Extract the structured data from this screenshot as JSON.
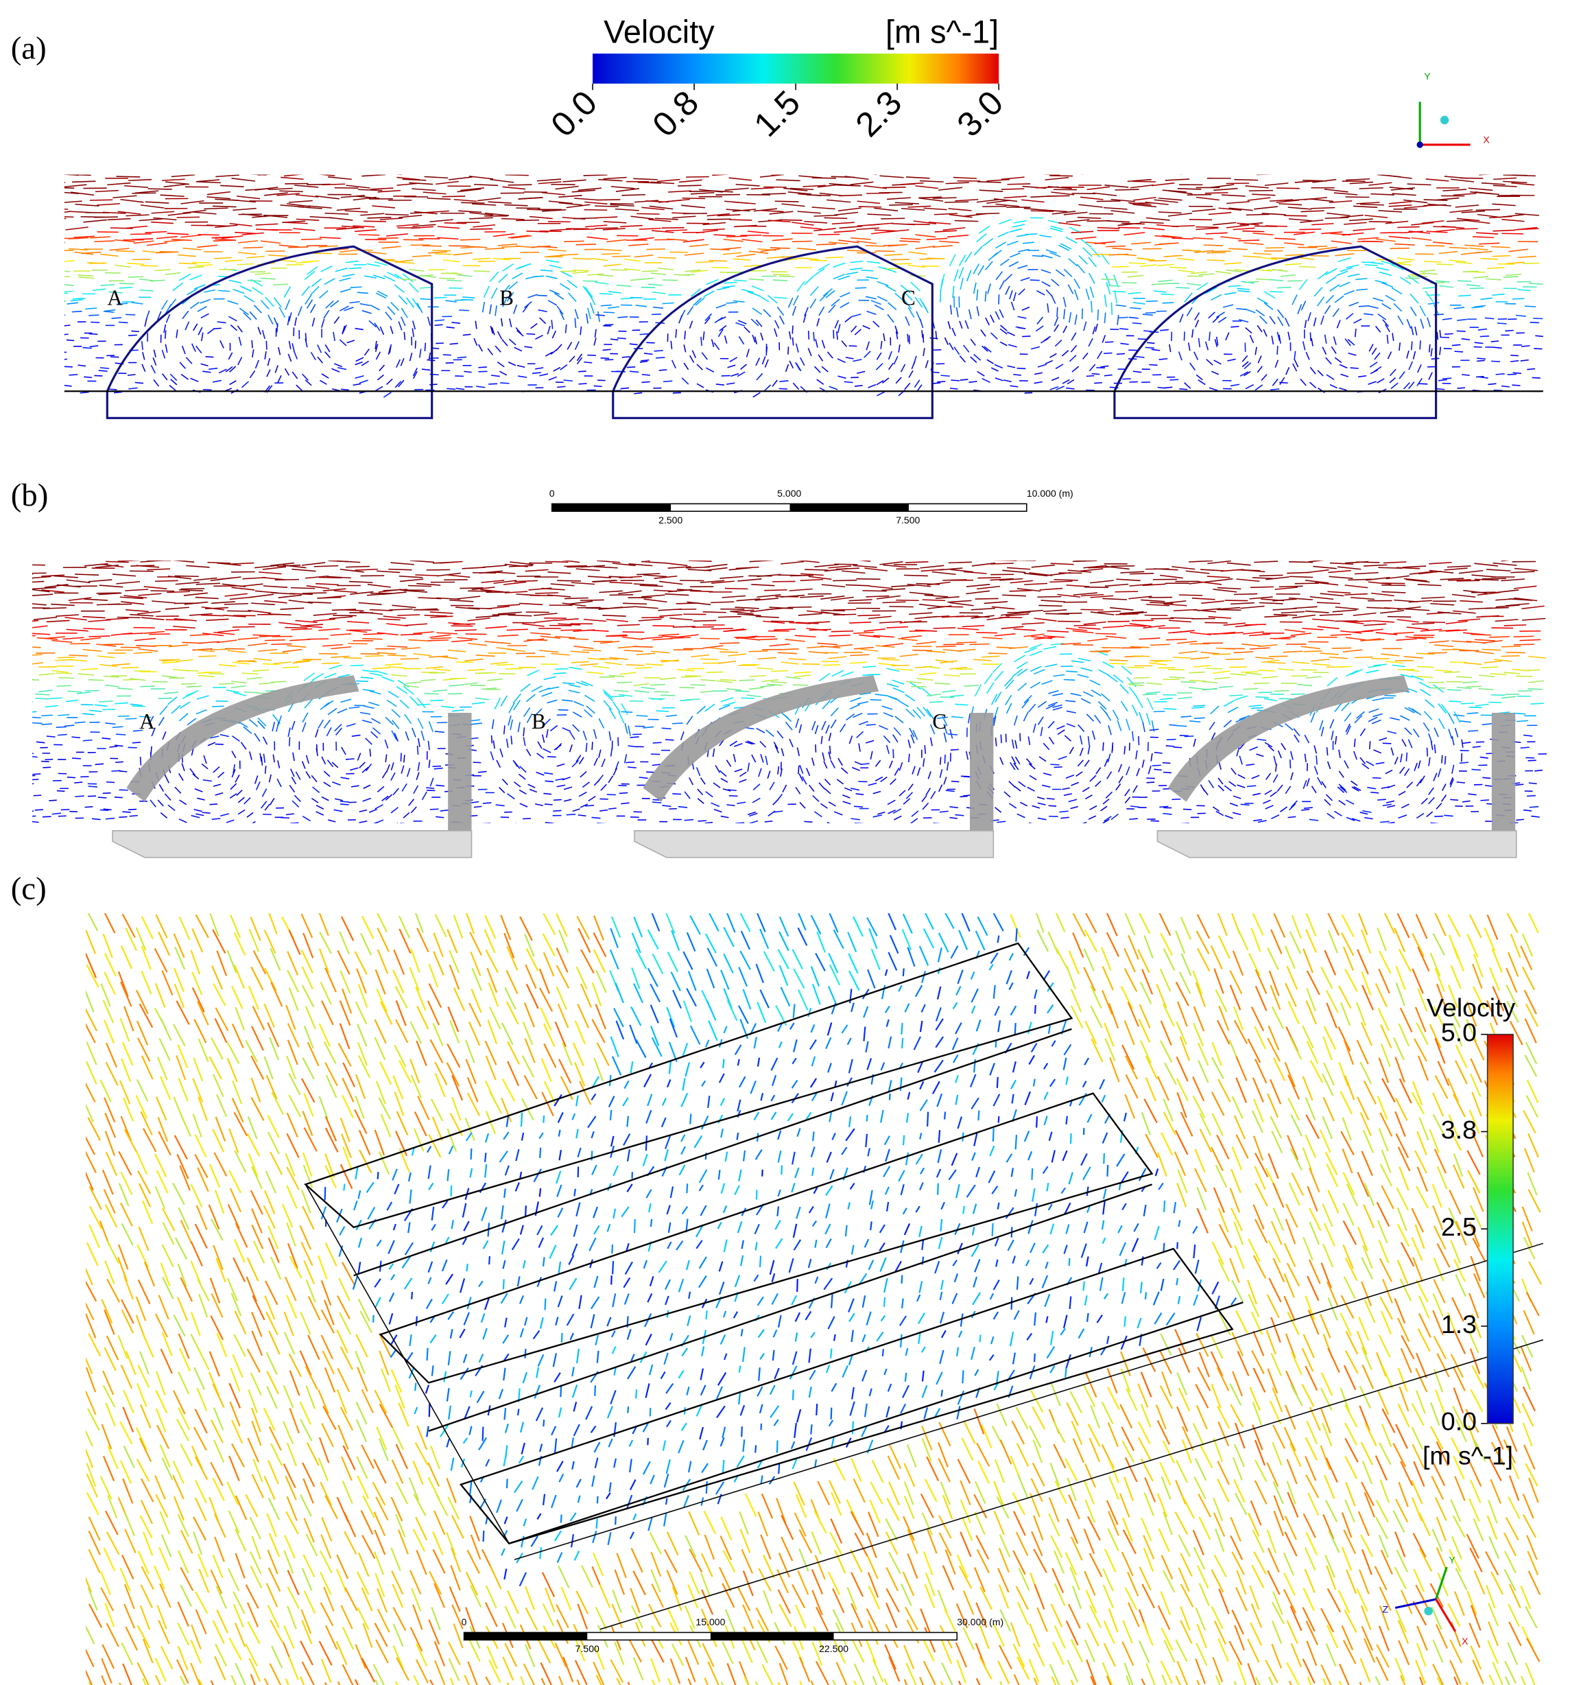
{
  "panels": [
    {
      "label": "(a)",
      "points": [
        "A",
        "B",
        "C"
      ]
    },
    {
      "label": "(b)",
      "points": [
        "A",
        "B",
        "C"
      ]
    },
    {
      "label": "(c)"
    }
  ],
  "colorbars": [
    {
      "title": "Velocity",
      "unit": "[m s^-1]",
      "ticks": [
        "0.0",
        "0.8",
        "1.5",
        "2.3",
        "3.0"
      ]
    },
    {
      "title": "Velocity",
      "unit": "[m s^-1]",
      "ticks": [
        "5.0",
        "3.8",
        "2.5",
        "1.3",
        "0.0"
      ]
    }
  ],
  "scale_bars": [
    {
      "top": [
        "0",
        "5.000",
        "10.000  (m)"
      ],
      "bottom": [
        "2.500",
        "7.500"
      ]
    },
    {
      "top": [
        "0",
        "15.000",
        "30.000  (m)"
      ],
      "bottom": [
        "7.500",
        "22.500"
      ]
    }
  ],
  "axes_triads": [
    {
      "labels": [
        "Y",
        "X"
      ]
    },
    {
      "labels": [
        "Y",
        "Z",
        "X"
      ]
    }
  ]
}
